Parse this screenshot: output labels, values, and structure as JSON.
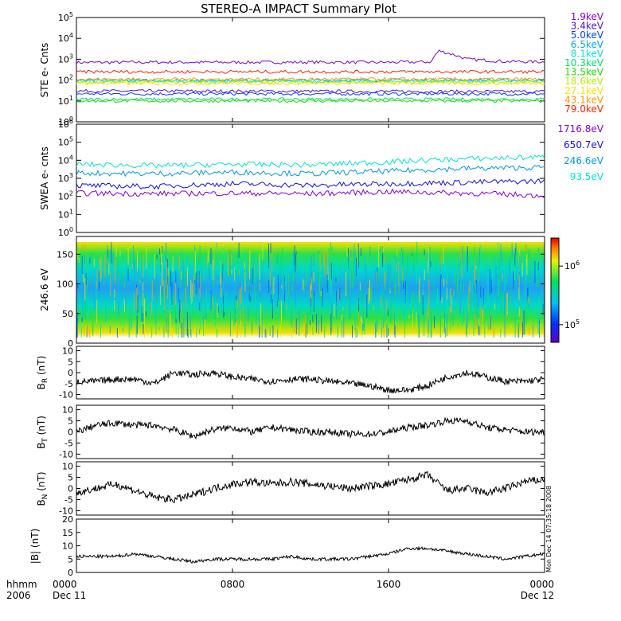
{
  "title": "STEREO-A IMPACT Summary Plot",
  "stamp": "Mon Dec 14 07:35:18 2008",
  "time_axis": {
    "corner_top": "hhmm",
    "corner_bottom": "2006",
    "ticks": [
      {
        "t": 0,
        "top": "0000",
        "bottom": "Dec 11"
      },
      {
        "t": 8,
        "top": "0800",
        "bottom": ""
      },
      {
        "t": 16,
        "top": "1600",
        "bottom": ""
      },
      {
        "t": 24,
        "top": "0000",
        "bottom": "Dec 12"
      }
    ]
  },
  "colors": {
    "ste_1.9": "#8000d8",
    "ste_3.4": "#5010d8",
    "ste_5.0": "#0040ff",
    "ste_6.5": "#00a8ff",
    "ste_8.1": "#00e8d0",
    "ste_10.3": "#00e070",
    "ste_13.5": "#20e000",
    "ste_18.6": "#b8f000",
    "ste_27.1": "#ffe000",
    "ste_43.1": "#ff9800",
    "ste_79.0": "#ff2000",
    "swea_1716.8": "#8000d8",
    "swea_650.7": "#1010e0",
    "swea_246.6": "#0098f0",
    "swea_93.5": "#00e8c8"
  },
  "chart_data": [
    {
      "type": "line",
      "panel": "ste",
      "ylabel": "STE e- Cnts",
      "yscale": "log",
      "ylim": [
        1,
        100000
      ],
      "tick_labels": [
        "10^0",
        "10^1",
        "10^2",
        "10^3",
        "10^4",
        "10^5"
      ],
      "x_range_hours": [
        0,
        24
      ],
      "legend_position": "right",
      "series": [
        {
          "name": "1.9keV",
          "color": "#8000d8",
          "x": [
            0,
            4,
            8,
            12,
            16,
            18.2,
            18.6,
            19.2,
            20,
            22,
            24
          ],
          "y": [
            700,
            720,
            710,
            720,
            710,
            750,
            2500,
            1800,
            1000,
            780,
            750
          ]
        },
        {
          "name": "3.4keV",
          "color": "#5010d8",
          "x": [
            0,
            24
          ],
          "y": [
            30,
            28
          ]
        },
        {
          "name": "5.0keV",
          "color": "#0040ff",
          "x": [
            0,
            24
          ],
          "y": [
            22,
            22
          ]
        },
        {
          "name": "6.5keV",
          "color": "#00a8ff",
          "x": [
            0,
            24
          ],
          "y": [
            95,
            100
          ]
        },
        {
          "name": "8.1keV",
          "color": "#00e8d0",
          "x": [
            0,
            24
          ],
          "y": [
            90,
            90
          ]
        },
        {
          "name": "10.3keV",
          "color": "#00e070",
          "x": [
            0,
            24
          ],
          "y": [
            12,
            12
          ]
        },
        {
          "name": "13.5keV",
          "color": "#20e000",
          "x": [
            0,
            24
          ],
          "y": [
            10,
            10
          ]
        },
        {
          "name": "18.6keV",
          "color": "#b8f000",
          "x": [
            0,
            24
          ],
          "y": [
            80,
            80
          ]
        },
        {
          "name": "27.1keV",
          "color": "#ffe000",
          "x": [
            0,
            24
          ],
          "y": [
            70,
            70
          ]
        },
        {
          "name": "43.1keV",
          "color": "#ff9800",
          "x": [
            0,
            24
          ],
          "y": [
            110,
            110
          ]
        },
        {
          "name": "79.0keV",
          "color": "#ff2000",
          "x": [
            0,
            24
          ],
          "y": [
            250,
            250
          ]
        }
      ]
    },
    {
      "type": "line",
      "panel": "swea",
      "ylabel": "SWEA e- cnts",
      "yscale": "log",
      "ylim": [
        1,
        1000000
      ],
      "tick_labels": [
        "10^0",
        "10^1",
        "10^2",
        "10^3",
        "10^4",
        "10^5",
        "10^6"
      ],
      "x_range_hours": [
        0,
        24
      ],
      "legend_position": "right",
      "series": [
        {
          "name": "1716.8eV",
          "color": "#8000d8",
          "x": [
            0,
            4,
            8,
            12,
            16,
            20,
            24
          ],
          "y": [
            150,
            140,
            150,
            140,
            180,
            150,
            110
          ]
        },
        {
          "name": "650.7eV",
          "color": "#1010e0",
          "x": [
            0,
            4,
            8,
            12,
            16,
            20,
            24
          ],
          "y": [
            400,
            350,
            500,
            400,
            500,
            600,
            700
          ]
        },
        {
          "name": "246.6eV",
          "color": "#0098f0",
          "x": [
            0,
            4,
            8,
            12,
            16,
            20,
            24
          ],
          "y": [
            2000,
            1800,
            2200,
            1800,
            2500,
            3500,
            4000
          ]
        },
        {
          "name": "93.5eV",
          "color": "#00e8c8",
          "x": [
            0,
            4,
            8,
            12,
            16,
            20,
            24
          ],
          "y": [
            6000,
            5000,
            6000,
            5500,
            8000,
            12000,
            15000
          ]
        }
      ]
    },
    {
      "type": "heatmap",
      "panel": "pad",
      "ylabel": "246.6 eV",
      "ylim": [
        0,
        180
      ],
      "y_ticks": [
        0,
        50,
        100,
        150
      ],
      "x_range_hours": [
        0,
        24
      ],
      "colorbar": {
        "scale": "log",
        "range": [
          50000,
          3000000
        ],
        "tick_labels": [
          "10^5",
          "10^6"
        ],
        "tick_values": [
          100000,
          1000000
        ]
      }
    },
    {
      "type": "line",
      "panel": "br",
      "ylabel": "B_R (nT)",
      "ylim": [
        -12,
        12
      ],
      "y_ticks": [
        -10,
        -5,
        0,
        5,
        10
      ],
      "x": [
        0,
        1,
        2,
        3,
        4,
        5,
        6,
        7,
        8,
        9,
        10,
        11,
        12,
        13,
        14,
        15,
        16,
        17,
        18,
        19,
        20,
        21,
        22,
        23,
        24
      ],
      "y": [
        -4,
        -4,
        -3,
        -3,
        -5,
        0,
        -1,
        0,
        -2,
        -3,
        -4,
        -3,
        -3,
        -4,
        -5,
        -6,
        -8,
        -8,
        -6,
        -2,
        0,
        -2,
        -4,
        -4,
        -3
      ]
    },
    {
      "type": "line",
      "panel": "bt",
      "ylabel": "B_T (nT)",
      "ylim": [
        -12,
        12
      ],
      "y_ticks": [
        -10,
        -5,
        0,
        5,
        10
      ],
      "x": [
        0,
        1,
        2,
        3,
        4,
        5,
        6,
        7,
        8,
        9,
        10,
        11,
        12,
        13,
        14,
        15,
        16,
        17,
        18,
        19,
        20,
        21,
        22,
        23,
        24
      ],
      "y": [
        0,
        3,
        4,
        3,
        3,
        1,
        -2,
        1,
        2,
        0,
        2,
        1,
        0,
        0,
        -1,
        -1,
        0,
        2,
        3,
        5,
        5,
        2,
        1,
        0,
        0
      ]
    },
    {
      "type": "line",
      "panel": "bn",
      "ylabel": "B_N (nT)",
      "ylim": [
        -12,
        12
      ],
      "y_ticks": [
        -10,
        -5,
        0,
        5,
        10
      ],
      "x": [
        0,
        1,
        2,
        3,
        4,
        5,
        6,
        7,
        8,
        9,
        10,
        11,
        12,
        13,
        14,
        15,
        16,
        17,
        18,
        19,
        20,
        21,
        22,
        23,
        24
      ],
      "y": [
        -2,
        0,
        2,
        -1,
        -4,
        -5,
        -3,
        0,
        2,
        3,
        2,
        3,
        2,
        1,
        0,
        1,
        2,
        4,
        6,
        -1,
        0,
        -2,
        0,
        3,
        4
      ]
    },
    {
      "type": "line",
      "panel": "bmag",
      "ylabel": "|B| (nT)",
      "ylim": [
        0,
        20
      ],
      "y_ticks": [
        0,
        5,
        10,
        15,
        20
      ],
      "x": [
        0,
        1,
        2,
        3,
        4,
        5,
        6,
        7,
        8,
        9,
        10,
        11,
        12,
        13,
        14,
        15,
        16,
        17,
        18,
        19,
        20,
        21,
        22,
        23,
        24
      ],
      "y": [
        6,
        6,
        6,
        7,
        6,
        5,
        4,
        5,
        5,
        5,
        5,
        6,
        5,
        5,
        5,
        6,
        7,
        9,
        9,
        8,
        7,
        6,
        5,
        6,
        7
      ]
    }
  ]
}
